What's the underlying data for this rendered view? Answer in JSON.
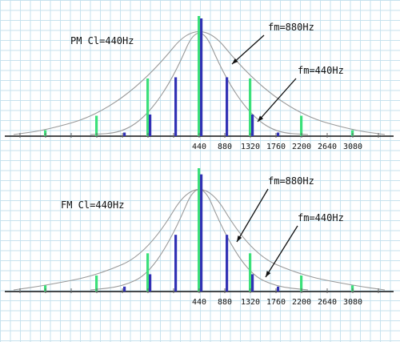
{
  "chart_data": [
    {
      "type": "bar",
      "title": "PM Cl=440Hz",
      "x": [
        -3080,
        -2640,
        -2200,
        -1760,
        -1320,
        -880,
        -440,
        0,
        440,
        880,
        1320,
        1760,
        2200,
        2640,
        3080
      ],
      "x_tick_labels": [
        "440",
        "880",
        "1320",
        "1760",
        "2200",
        "2640",
        "3080"
      ],
      "series": [
        {
          "name": "fm=880Hz",
          "color": "#3ce07a",
          "x": [
            -2640,
            -1760,
            -880,
            0,
            880,
            1760,
            2640
          ],
          "values": [
            0.05,
            0.17,
            0.48,
            1.0,
            0.48,
            0.17,
            0.05
          ]
        },
        {
          "name": "fm=440Hz",
          "color": "#3232b4",
          "x": [
            -1320,
            -880,
            -440,
            0,
            440,
            880,
            1320
          ],
          "values": [
            0.03,
            0.18,
            0.49,
            0.98,
            0.49,
            0.18,
            0.03
          ]
        }
      ],
      "annotations": [
        "fm=880Hz",
        "fm=440Hz"
      ]
    },
    {
      "type": "bar",
      "title": "FM Cl=440Hz",
      "x": [
        -3080,
        -2640,
        -2200,
        -1760,
        -1320,
        -880,
        -440,
        0,
        440,
        880,
        1320,
        1760,
        2200,
        2640,
        3080
      ],
      "x_tick_labels": [
        "440",
        "880",
        "1320",
        "1760",
        "2200",
        "2640",
        "3080"
      ],
      "series": [
        {
          "name": "fm=880Hz",
          "color": "#3ce07a",
          "x": [
            -2640,
            -1760,
            -880,
            0,
            880,
            1760,
            2640
          ],
          "values": [
            0.05,
            0.13,
            0.31,
            1.0,
            0.31,
            0.13,
            0.05
          ]
        },
        {
          "name": "fm=440Hz",
          "color": "#3232b4",
          "x": [
            -1320,
            -880,
            -440,
            0,
            440,
            880,
            1320
          ],
          "values": [
            0.04,
            0.14,
            0.46,
            0.95,
            0.46,
            0.14,
            0.04
          ]
        }
      ],
      "annotations": [
        "fm=880Hz",
        "fm=440Hz"
      ]
    }
  ]
}
